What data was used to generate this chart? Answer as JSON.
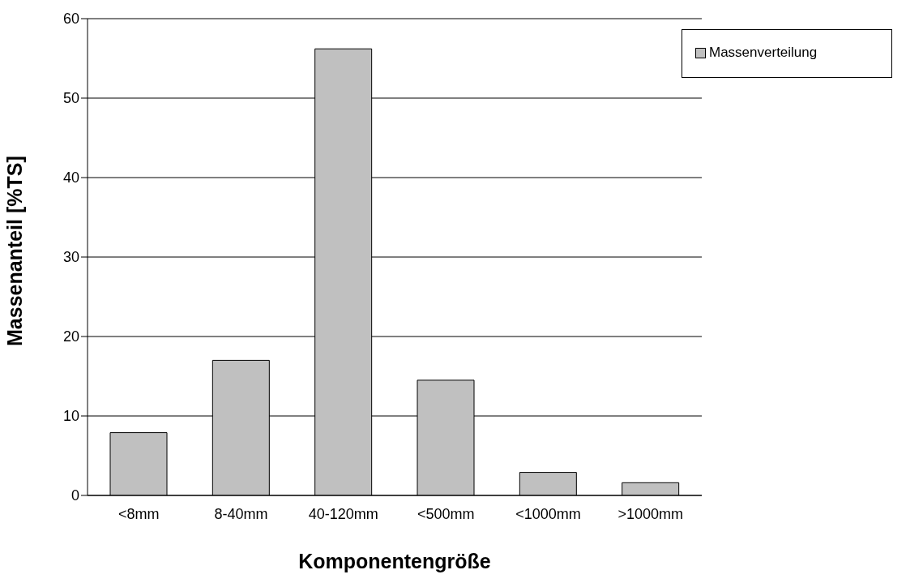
{
  "chart_data": {
    "type": "bar",
    "xlabel": "Komponentengröße",
    "ylabel": "Massenanteil [%TS]",
    "categories": [
      "<8mm",
      "8-40mm",
      "40-120mm",
      "<500mm",
      "<1000mm",
      ">1000mm"
    ],
    "series": [
      {
        "name": "Massenverteilung",
        "color": "#c0c0c0",
        "values": [
          7.9,
          17.0,
          56.2,
          14.5,
          2.9,
          1.6
        ]
      }
    ],
    "ylim": [
      0,
      60
    ],
    "yticks": [
      0,
      10,
      20,
      30,
      40,
      50,
      60
    ],
    "grid": "y",
    "legend": "top right"
  }
}
